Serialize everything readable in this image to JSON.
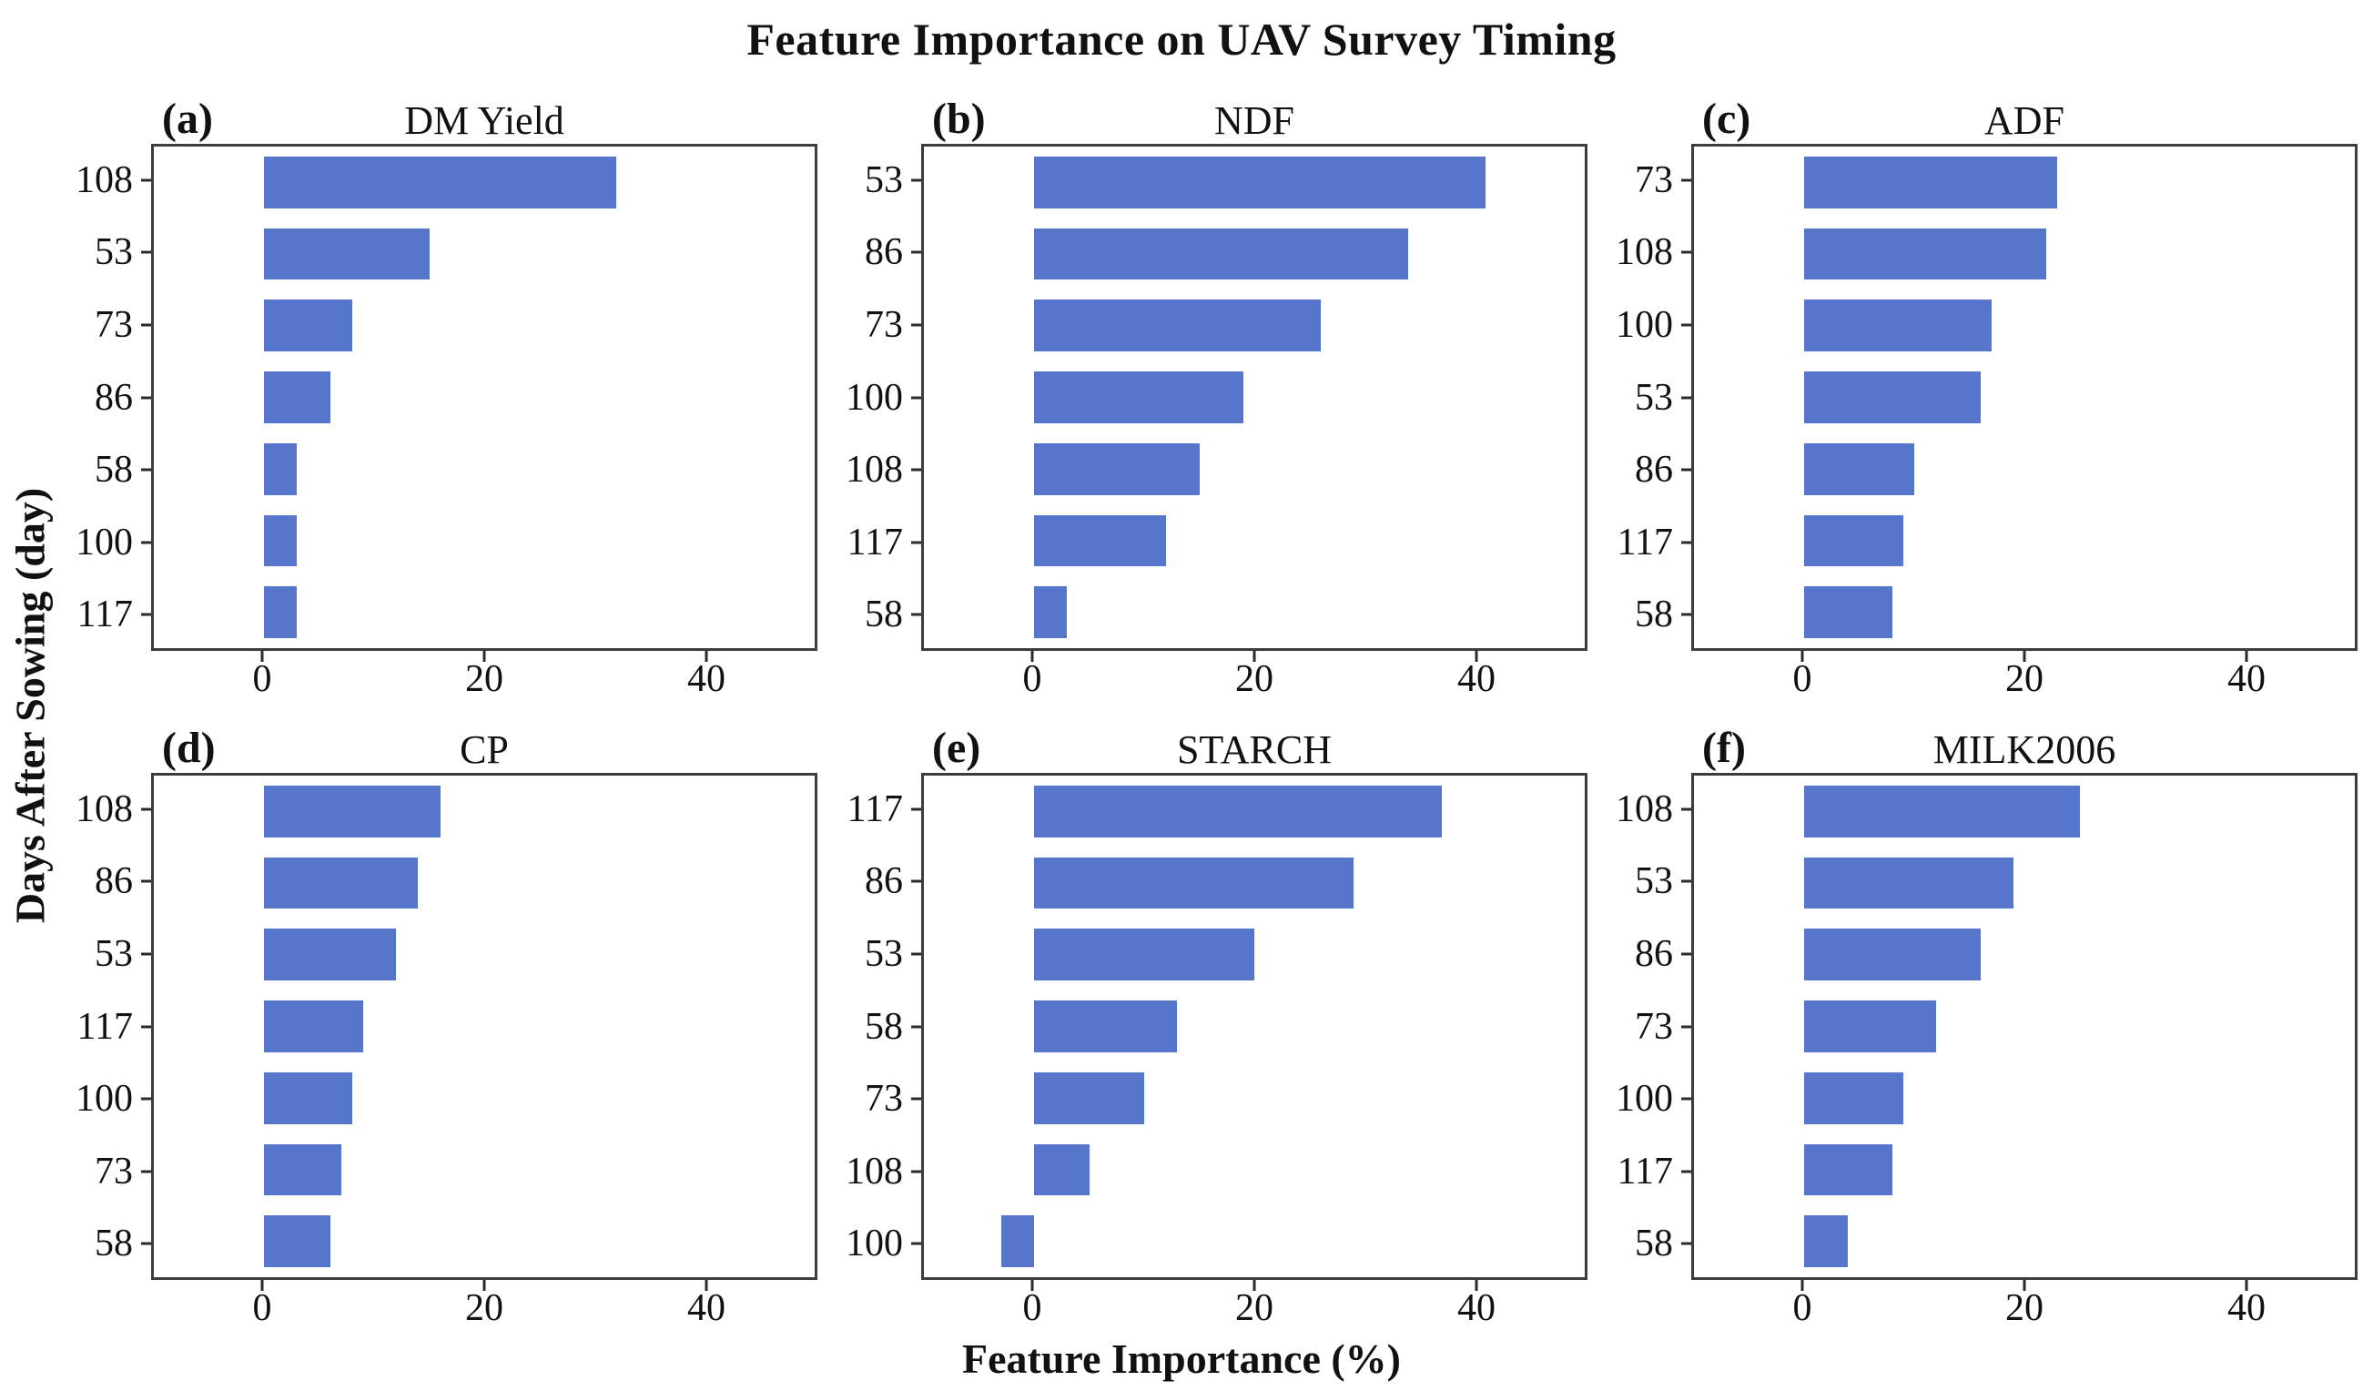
{
  "figure": {
    "title": "Feature Importance on UAV Survey Timing",
    "xlabel": "Feature Importance (%)",
    "ylabel": "Days After Sowing (day)",
    "bar_color": "#5576CB",
    "axis_color": "#3d3d3d",
    "text_color": "#111111"
  },
  "chart_data": [
    {
      "type": "bar",
      "panel": "(a)",
      "title": "DM Yield",
      "categories": [
        "108",
        "53",
        "73",
        "86",
        "58",
        "100",
        "117"
      ],
      "values": [
        32,
        15,
        8,
        6,
        3,
        3,
        3
      ],
      "xlim": [
        -10,
        50
      ],
      "xticks": [
        0,
        20,
        40
      ],
      "orientation": "horizontal",
      "grid": false
    },
    {
      "type": "bar",
      "panel": "(b)",
      "title": "NDF",
      "categories": [
        "53",
        "86",
        "73",
        "100",
        "108",
        "117",
        "58"
      ],
      "values": [
        41,
        34,
        26,
        19,
        15,
        12,
        3
      ],
      "xlim": [
        -10,
        50
      ],
      "xticks": [
        0,
        20,
        40
      ],
      "orientation": "horizontal",
      "grid": false
    },
    {
      "type": "bar",
      "panel": "(c)",
      "title": "ADF",
      "categories": [
        "73",
        "108",
        "100",
        "53",
        "86",
        "117",
        "58"
      ],
      "values": [
        23,
        22,
        17,
        16,
        10,
        9,
        8
      ],
      "xlim": [
        -10,
        50
      ],
      "xticks": [
        0,
        20,
        40
      ],
      "orientation": "horizontal",
      "grid": false
    },
    {
      "type": "bar",
      "panel": "(d)",
      "title": "CP",
      "categories": [
        "108",
        "86",
        "53",
        "117",
        "100",
        "73",
        "58"
      ],
      "values": [
        16,
        14,
        12,
        9,
        8,
        7,
        6
      ],
      "xlim": [
        -10,
        50
      ],
      "xticks": [
        0,
        20,
        40
      ],
      "orientation": "horizontal",
      "grid": false
    },
    {
      "type": "bar",
      "panel": "(e)",
      "title": "STARCH",
      "categories": [
        "117",
        "86",
        "53",
        "58",
        "73",
        "108",
        "100"
      ],
      "values": [
        37,
        29,
        20,
        13,
        10,
        5,
        -3
      ],
      "xlim": [
        -10,
        50
      ],
      "xticks": [
        0,
        20,
        40
      ],
      "orientation": "horizontal",
      "grid": false
    },
    {
      "type": "bar",
      "panel": "(f)",
      "title": "MILK2006",
      "categories": [
        "108",
        "53",
        "86",
        "73",
        "100",
        "117",
        "58"
      ],
      "values": [
        25,
        19,
        16,
        12,
        9,
        8,
        4
      ],
      "xlim": [
        -10,
        50
      ],
      "xticks": [
        0,
        20,
        40
      ],
      "orientation": "horizontal",
      "grid": false
    }
  ]
}
